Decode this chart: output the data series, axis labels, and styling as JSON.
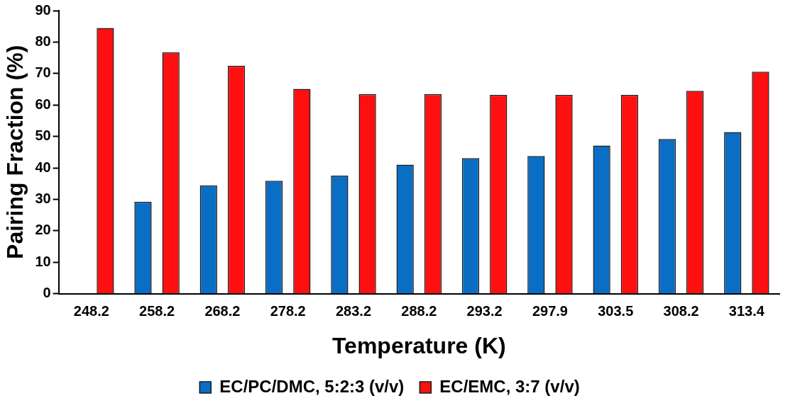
{
  "chart_data": {
    "type": "bar",
    "xlabel": "Temperature (K)",
    "ylabel": "Pairing Fraction (%)",
    "categories": [
      "248.2",
      "258.2",
      "268.2",
      "278.2",
      "283.2",
      "288.2",
      "293.2",
      "297.9",
      "303.5",
      "308.2",
      "313.4"
    ],
    "series": [
      {
        "name": "EC/PC/DMC, 5:2:3 (v/v)",
        "color": "#0a6ec4",
        "values": [
          null,
          29.2,
          34.4,
          35.9,
          37.5,
          41.0,
          43.1,
          43.8,
          47.1,
          49.2,
          51.4
        ]
      },
      {
        "name": "EC/EMC, 3:7 (v/v)",
        "color": "#ff1010",
        "values": [
          84.5,
          76.7,
          72.5,
          65.1,
          63.4,
          63.4,
          63.2,
          63.2,
          63.2,
          64.5,
          70.6
        ]
      }
    ],
    "ylim": [
      0,
      90
    ],
    "yticks": [
      0,
      10,
      20,
      30,
      40,
      50,
      60,
      70,
      80,
      90
    ],
    "grid": false,
    "legend": "bottom"
  }
}
